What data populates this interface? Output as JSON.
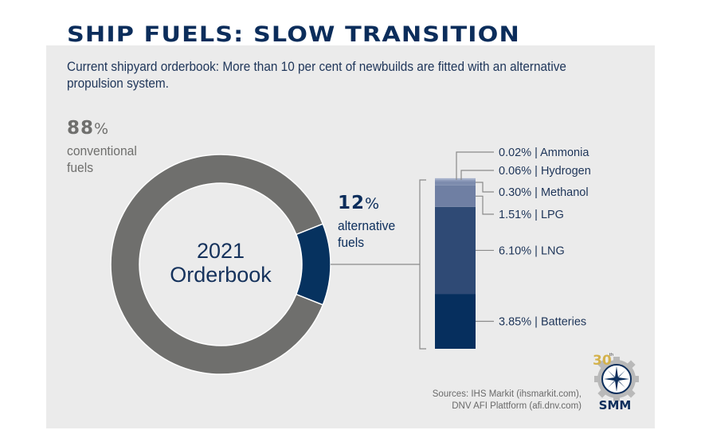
{
  "header": {
    "title": "SHIP FUELS: SLOW TRANSITION",
    "subtitle": "Current shipyard orderbook: More than 10 per cent of newbuilds are fitted with an alternative propulsion system."
  },
  "donut": {
    "center_year": "2021",
    "center_label": "Orderbook",
    "conventional": {
      "value": "88",
      "symbol": "%",
      "label_line1": "conventional",
      "label_line2": "fuels"
    },
    "alternative": {
      "value": "12",
      "symbol": "%",
      "label_line1": "alternative",
      "label_line2": "fuels"
    }
  },
  "sources": {
    "line1": "Sources: IHS Markit (ihsmarkit.com),",
    "line2": "DNV AFI Plattform (afi.dnv.com)"
  },
  "logo": {
    "anniversary": "30th",
    "name": "SMM"
  },
  "colors": {
    "conventional": "#6f6f6d",
    "alternative": "#06325f",
    "background": "#ebebeb",
    "title": "#0b2d5b"
  },
  "chart_data": [
    {
      "type": "pie",
      "title": "2021 Orderbook",
      "categories": [
        "conventional fuels",
        "alternative fuels"
      ],
      "values": [
        88,
        12
      ],
      "unit": "%",
      "colors": [
        "#6f6f6d",
        "#06325f"
      ]
    },
    {
      "type": "bar",
      "stacked": true,
      "title": "Alternative fuels breakdown",
      "categories": [
        "Batteries",
        "LNG",
        "LPG",
        "Methanol",
        "Hydrogen",
        "Ammonia"
      ],
      "values": [
        3.85,
        6.1,
        1.51,
        0.3,
        0.06,
        0.02
      ],
      "labels": [
        "3.85%",
        "6.10%",
        "1.51%",
        "0.30%",
        "0.06%",
        "0.02%"
      ],
      "unit": "%",
      "colors": [
        "#062f5e",
        "#2f4a75",
        "#6f7fa3",
        "#7d8cae",
        "#8d9bbb",
        "#a3afca"
      ]
    }
  ]
}
